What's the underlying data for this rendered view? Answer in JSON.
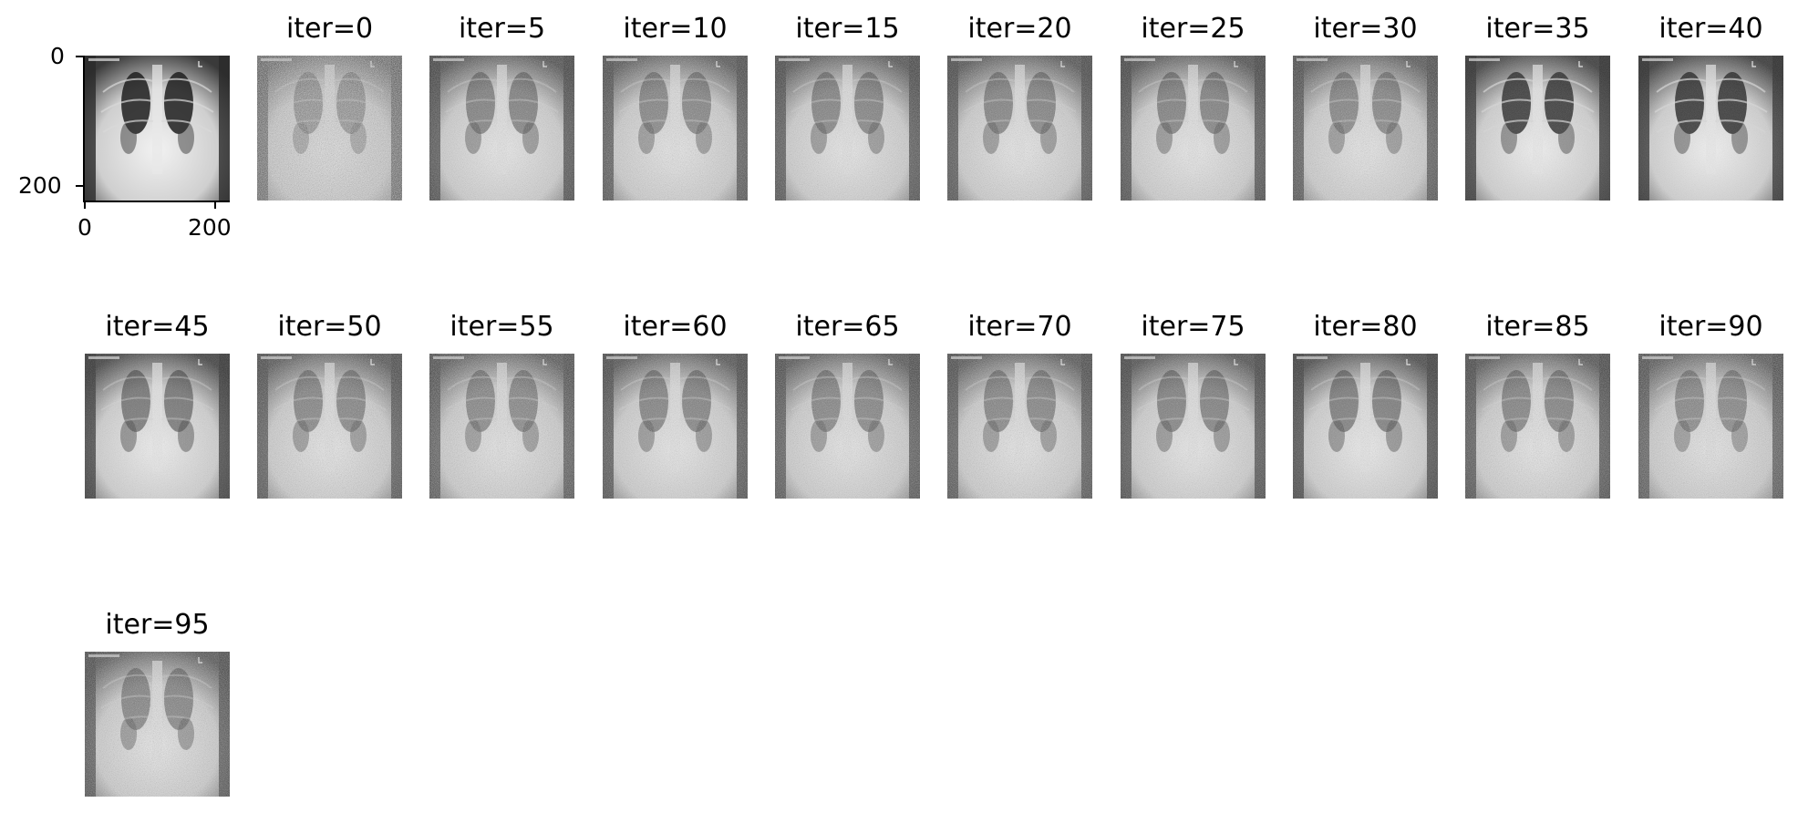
{
  "original": {
    "x_ticks": [
      "0",
      "200"
    ],
    "y_ticks": [
      "0",
      "200"
    ]
  },
  "panels": [
    {
      "title": "iter=0"
    },
    {
      "title": "iter=5"
    },
    {
      "title": "iter=10"
    },
    {
      "title": "iter=15"
    },
    {
      "title": "iter=20"
    },
    {
      "title": "iter=25"
    },
    {
      "title": "iter=30"
    },
    {
      "title": "iter=35"
    },
    {
      "title": "iter=40"
    },
    {
      "title": "iter=45"
    },
    {
      "title": "iter=50"
    },
    {
      "title": "iter=55"
    },
    {
      "title": "iter=60"
    },
    {
      "title": "iter=65"
    },
    {
      "title": "iter=70"
    },
    {
      "title": "iter=75"
    },
    {
      "title": "iter=80"
    },
    {
      "title": "iter=85"
    },
    {
      "title": "iter=90"
    },
    {
      "title": "iter=95"
    }
  ]
}
